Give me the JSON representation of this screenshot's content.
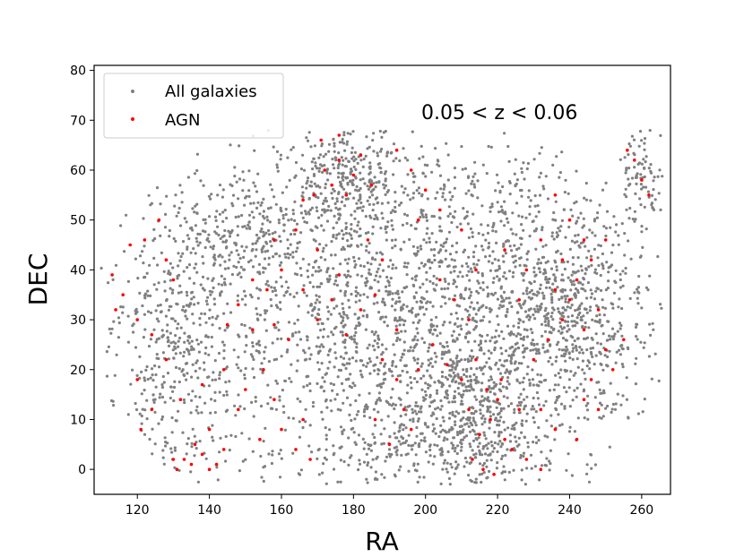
{
  "chart_data": {
    "type": "scatter",
    "xlabel": "RA",
    "ylabel": "DEC",
    "xlim": [
      108,
      268
    ],
    "ylim": [
      -5,
      81
    ],
    "xticks": [
      120,
      140,
      160,
      180,
      200,
      220,
      240,
      260
    ],
    "yticks": [
      0,
      10,
      20,
      30,
      40,
      50,
      60,
      70,
      80
    ],
    "grid": false,
    "legend_position": "top-left",
    "annotation": "0.05 < z < 0.06",
    "series": [
      {
        "name": "All galaxies",
        "color": "#808080",
        "marker": "dot",
        "regions": [
          {
            "center": [
              200,
              32
            ],
            "spread": [
              70,
              30
            ],
            "count": 2400
          },
          {
            "center": [
              178,
              58
            ],
            "spread": [
              12,
              10
            ],
            "count": 260
          },
          {
            "center": [
              215,
              12
            ],
            "spread": [
              16,
              14
            ],
            "count": 320
          },
          {
            "center": [
              240,
              32
            ],
            "spread": [
              12,
              16
            ],
            "count": 300
          },
          {
            "center": [
              130,
              20
            ],
            "spread": [
              12,
              25
            ],
            "count": 260
          },
          {
            "center": [
              260,
              58
            ],
            "spread": [
              5,
              8
            ],
            "count": 70
          },
          {
            "center": [
              150,
              48
            ],
            "spread": [
              18,
              8
            ],
            "count": 180
          },
          {
            "center": [
              200,
              5
            ],
            "spread": [
              30,
              8
            ],
            "count": 200
          }
        ]
      },
      {
        "name": "AGN",
        "color": "#ff0000",
        "marker": "dot",
        "points": [
          [
            176,
            62
          ],
          [
            174,
            57
          ],
          [
            178,
            55
          ],
          [
            172,
            60
          ],
          [
            180,
            59
          ],
          [
            171,
            66
          ],
          [
            176,
            67
          ],
          [
            182,
            63
          ],
          [
            169,
            55
          ],
          [
            185,
            57
          ],
          [
            122,
            46
          ],
          [
            118,
            45
          ],
          [
            126,
            50
          ],
          [
            128,
            42
          ],
          [
            130,
            38
          ],
          [
            116,
            35
          ],
          [
            120,
            30
          ],
          [
            124,
            27
          ],
          [
            113,
            39
          ],
          [
            114,
            32
          ],
          [
            133,
            2
          ],
          [
            135,
            1
          ],
          [
            130,
            2
          ],
          [
            138,
            3
          ],
          [
            140,
            0
          ],
          [
            136,
            5
          ],
          [
            142,
            1
          ],
          [
            131,
            0
          ],
          [
            120,
            18
          ],
          [
            124,
            12
          ],
          [
            132,
            14
          ],
          [
            138,
            17
          ],
          [
            144,
            20
          ],
          [
            148,
            12
          ],
          [
            121,
            8
          ],
          [
            128,
            22
          ],
          [
            148,
            33
          ],
          [
            152,
            38
          ],
          [
            156,
            36
          ],
          [
            160,
            40
          ],
          [
            145,
            29
          ],
          [
            158,
            29
          ],
          [
            162,
            26
          ],
          [
            166,
            36
          ],
          [
            170,
            30
          ],
          [
            174,
            34
          ],
          [
            178,
            27
          ],
          [
            182,
            32
          ],
          [
            186,
            35
          ],
          [
            176,
            39
          ],
          [
            188,
            22
          ],
          [
            192,
            28
          ],
          [
            204,
            38
          ],
          [
            208,
            34
          ],
          [
            212,
            30
          ],
          [
            198,
            20
          ],
          [
            202,
            25
          ],
          [
            206,
            21
          ],
          [
            210,
            18
          ],
          [
            214,
            22
          ],
          [
            212,
            12
          ],
          [
            215,
            7
          ],
          [
            218,
            10
          ],
          [
            220,
            14
          ],
          [
            222,
            6
          ],
          [
            213,
            2
          ],
          [
            216,
            0
          ],
          [
            219,
            -1
          ],
          [
            224,
            4
          ],
          [
            226,
            12
          ],
          [
            217,
            16
          ],
          [
            221,
            18
          ],
          [
            230,
            22
          ],
          [
            234,
            26
          ],
          [
            238,
            30
          ],
          [
            240,
            34
          ],
          [
            244,
            28
          ],
          [
            236,
            36
          ],
          [
            242,
            38
          ],
          [
            248,
            32
          ],
          [
            250,
            24
          ],
          [
            246,
            18
          ],
          [
            244,
            14
          ],
          [
            248,
            12
          ],
          [
            252,
            20
          ],
          [
            255,
            26
          ],
          [
            240,
            50
          ],
          [
            244,
            46
          ],
          [
            246,
            42
          ],
          [
            238,
            42
          ],
          [
            250,
            46
          ],
          [
            236,
            55
          ],
          [
            258,
            62
          ],
          [
            260,
            58
          ],
          [
            256,
            64
          ],
          [
            262,
            55
          ],
          [
            160,
            8
          ],
          [
            164,
            4
          ],
          [
            168,
            2
          ],
          [
            158,
            14
          ],
          [
            154,
            6
          ],
          [
            166,
            10
          ],
          [
            186,
            10
          ],
          [
            190,
            5
          ],
          [
            194,
            12
          ],
          [
            196,
            8
          ],
          [
            192,
            18
          ],
          [
            140,
            8
          ],
          [
            144,
            4
          ],
          [
            150,
            16
          ],
          [
            155,
            20
          ],
          [
            152,
            28
          ],
          [
            198,
            50
          ],
          [
            204,
            52
          ],
          [
            210,
            48
          ],
          [
            222,
            44
          ],
          [
            228,
            40
          ],
          [
            232,
            46
          ],
          [
            170,
            44
          ],
          [
            164,
            48
          ],
          [
            158,
            46
          ],
          [
            166,
            54
          ],
          [
            184,
            46
          ],
          [
            188,
            42
          ],
          [
            196,
            60
          ],
          [
            200,
            56
          ],
          [
            192,
            64
          ],
          [
            214,
            40
          ],
          [
            226,
            34
          ],
          [
            232,
            12
          ],
          [
            236,
            8
          ],
          [
            228,
            2
          ],
          [
            232,
            0
          ],
          [
            242,
            6
          ]
        ]
      }
    ]
  }
}
